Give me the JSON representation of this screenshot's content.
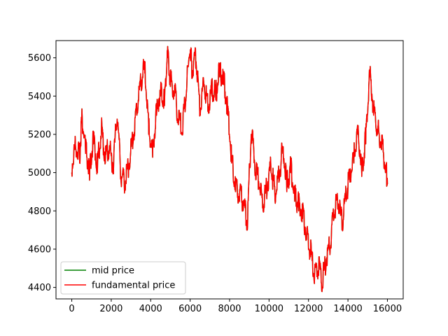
{
  "chart_data": {
    "type": "line",
    "title": "",
    "xlabel": "",
    "ylabel": "",
    "xlim": [
      -800,
      16800
    ],
    "ylim": [
      4340,
      5690
    ],
    "xticks": [
      0,
      2000,
      4000,
      6000,
      8000,
      10000,
      12000,
      14000,
      16000
    ],
    "yticks": [
      4400,
      4600,
      4800,
      5000,
      5200,
      5400,
      5600
    ],
    "xtick_labels": [
      "0",
      "2000",
      "4000",
      "6000",
      "8000",
      "10000",
      "12000",
      "14000",
      "16000"
    ],
    "ytick_labels": [
      "4400",
      "4600",
      "4800",
      "5000",
      "5200",
      "5400",
      "5600"
    ],
    "grid": false,
    "legend": {
      "position": "lower-left"
    },
    "series": [
      {
        "name": "mid price",
        "color": "#008000",
        "x": [
          0,
          200,
          400,
          500,
          700,
          900,
          1100,
          1300,
          1500,
          1700,
          1900,
          2100,
          2300,
          2500,
          2700,
          2900,
          3100,
          3300,
          3500,
          3700,
          3900,
          4100,
          4300,
          4500,
          4700,
          4850,
          5000,
          5200,
          5400,
          5600,
          5800,
          6000,
          6100,
          6300,
          6500,
          6700,
          6900,
          7100,
          7300,
          7500,
          7700,
          7900,
          8100,
          8300,
          8500,
          8700,
          8900,
          9100,
          9300,
          9500,
          9700,
          9900,
          10100,
          10300,
          10500,
          10700,
          10900,
          11100,
          11300,
          11500,
          11700,
          11900,
          12100,
          12300,
          12500,
          12700,
          12900,
          13100,
          13300,
          13500,
          13700,
          13900,
          14100,
          14300,
          14500,
          14700,
          14900,
          15100,
          15300,
          15500,
          15700,
          15900,
          16000
        ],
        "y": [
          5000,
          5120,
          5050,
          5260,
          5100,
          4960,
          5150,
          5000,
          5200,
          5050,
          5100,
          5000,
          5280,
          4950,
          4920,
          5020,
          5150,
          5300,
          5450,
          5520,
          5200,
          5080,
          5300,
          5400,
          5350,
          5600,
          5450,
          5400,
          5250,
          5200,
          5400,
          5620,
          5500,
          5580,
          5300,
          5450,
          5320,
          5400,
          5380,
          5500,
          5460,
          5300,
          5050,
          4900,
          4850,
          4820,
          4700,
          5200,
          5000,
          4920,
          4800,
          4900,
          5000,
          4860,
          4950,
          5100,
          4900,
          5000,
          4850,
          4800,
          4760,
          4650,
          4560,
          4420,
          4480,
          4400,
          4520,
          4600,
          4780,
          4820,
          4700,
          4850,
          4950,
          5050,
          5200,
          4980,
          5150,
          5500,
          5300,
          5200,
          5120,
          5000,
          4940
        ]
      },
      {
        "name": "fundamental price",
        "color": "#ff0000",
        "x": [
          0,
          200,
          400,
          500,
          700,
          900,
          1100,
          1300,
          1500,
          1700,
          1900,
          2100,
          2300,
          2500,
          2700,
          2900,
          3100,
          3300,
          3500,
          3700,
          3900,
          4100,
          4300,
          4500,
          4700,
          4850,
          5000,
          5200,
          5400,
          5600,
          5800,
          6000,
          6100,
          6300,
          6500,
          6700,
          6900,
          7100,
          7300,
          7500,
          7700,
          7900,
          8100,
          8300,
          8500,
          8700,
          8900,
          9100,
          9300,
          9500,
          9700,
          9900,
          10100,
          10300,
          10500,
          10700,
          10900,
          11100,
          11300,
          11500,
          11700,
          11900,
          12100,
          12300,
          12500,
          12700,
          12900,
          13100,
          13300,
          13500,
          13700,
          13900,
          14100,
          14300,
          14500,
          14700,
          14900,
          15100,
          15300,
          15500,
          15700,
          15900,
          16000
        ],
        "y": [
          5000,
          5120,
          5050,
          5260,
          5100,
          4960,
          5150,
          5000,
          5200,
          5050,
          5100,
          5000,
          5280,
          4950,
          4920,
          5020,
          5150,
          5300,
          5450,
          5520,
          5200,
          5080,
          5300,
          5400,
          5350,
          5600,
          5450,
          5400,
          5250,
          5200,
          5400,
          5620,
          5500,
          5580,
          5300,
          5450,
          5320,
          5400,
          5380,
          5500,
          5460,
          5300,
          5050,
          4900,
          4850,
          4820,
          4700,
          5200,
          5000,
          4920,
          4800,
          4900,
          5000,
          4860,
          4950,
          5100,
          4900,
          5000,
          4850,
          4800,
          4760,
          4650,
          4560,
          4420,
          4480,
          4400,
          4520,
          4600,
          4780,
          4820,
          4700,
          4850,
          4950,
          5050,
          5200,
          4980,
          5150,
          5500,
          5300,
          5200,
          5120,
          5000,
          4940
        ]
      }
    ]
  }
}
